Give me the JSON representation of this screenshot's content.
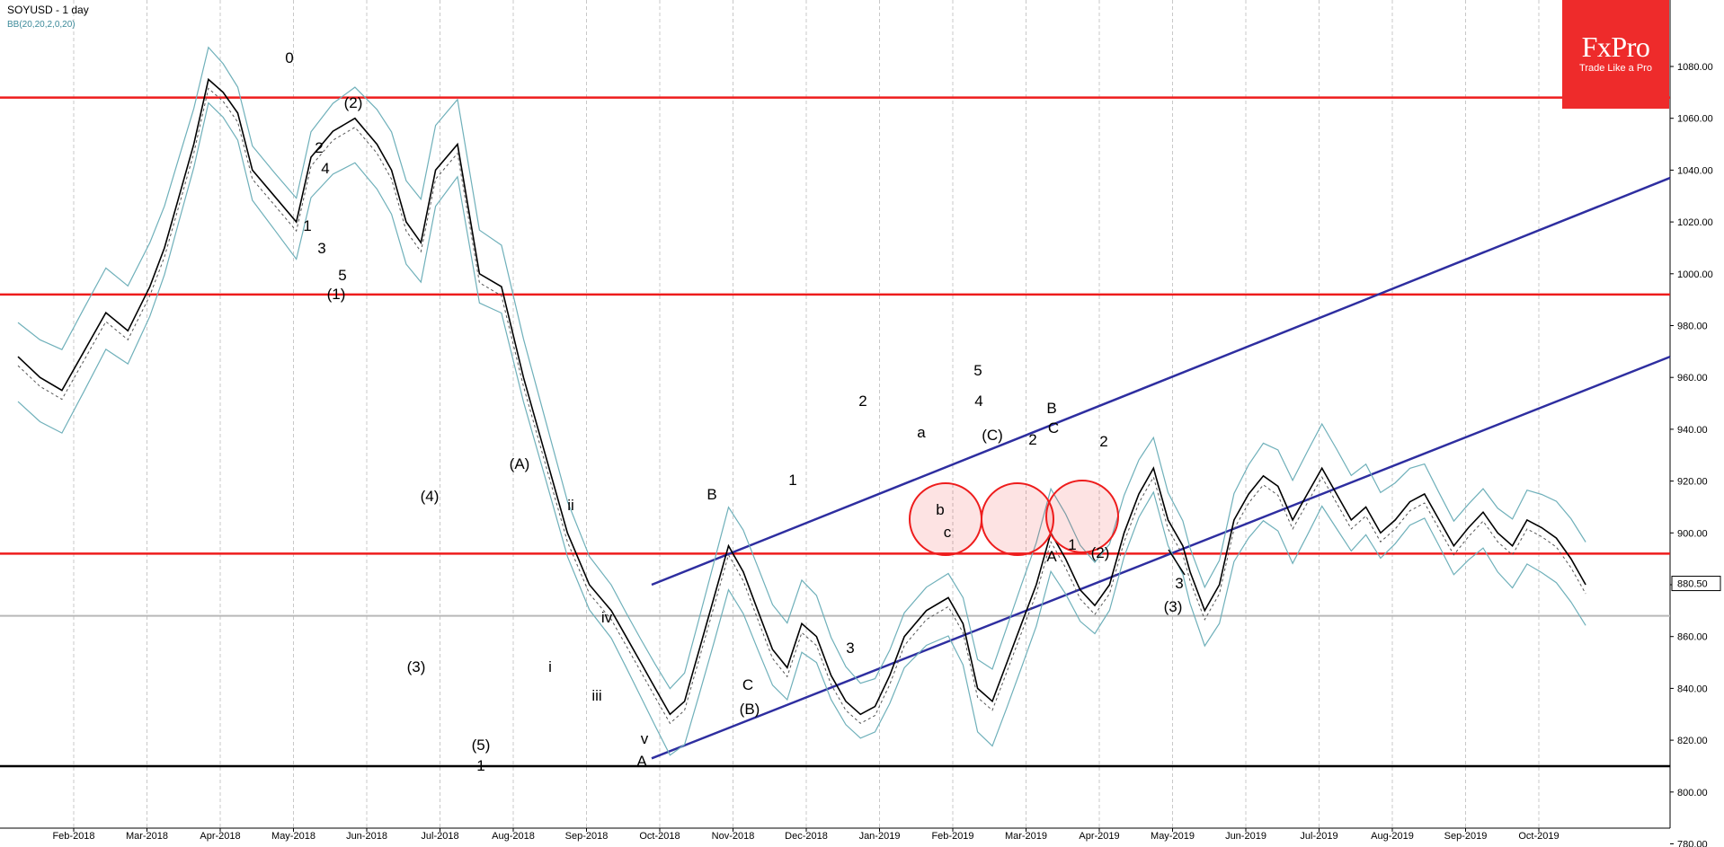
{
  "header": {
    "title": "SOYUSD - 1 day",
    "indicator": "BB(20,20,2,0,20)"
  },
  "brand": {
    "name": "FxPro",
    "tagline": "Trade Like a Pro",
    "color": "#ee2b2b"
  },
  "colors": {
    "price_line": "#000000",
    "bollinger": "#6fb0ba",
    "support_resistance": "#ee1c1c",
    "channel": "#2e2ea0",
    "floor_line": "#000000",
    "gray_line": "#b8b8b8",
    "grid": "#c8c8c8"
  },
  "chart_data": {
    "type": "line",
    "title": "SOYUSD - 1 day",
    "xlabel": "",
    "ylabel": "",
    "ylim": [
      770,
      1090
    ],
    "grid": true,
    "legend": "none",
    "x_tick_labels": [
      "Feb-2018",
      "Mar-2018",
      "Apr-2018",
      "May-2018",
      "Jun-2018",
      "Jul-2018",
      "Aug-2018",
      "Sep-2018",
      "Oct-2018",
      "Nov-2018",
      "Dec-2018",
      "Jan-2019",
      "Feb-2019",
      "Mar-2019",
      "Apr-2019",
      "May-2019",
      "Jun-2019",
      "Jul-2019",
      "Aug-2019",
      "Sep-2019",
      "Oct-2019"
    ],
    "y_ticks": [
      780,
      800,
      820,
      840,
      860,
      880,
      900,
      920,
      940,
      960,
      980,
      1000,
      1020,
      1040,
      1060,
      1080
    ],
    "current_price_label": "880.50",
    "current_price": 880.5,
    "series": [
      {
        "points": [
          [
            0,
            968
          ],
          [
            0.3,
            960
          ],
          [
            0.6,
            955
          ],
          [
            0.9,
            970
          ],
          [
            1.2,
            985
          ],
          [
            1.5,
            978
          ],
          [
            1.8,
            995
          ],
          [
            2.0,
            1010
          ],
          [
            2.2,
            1030
          ],
          [
            2.4,
            1050
          ],
          [
            2.6,
            1075
          ],
          [
            2.8,
            1070
          ],
          [
            3.0,
            1062
          ],
          [
            3.2,
            1040
          ],
          [
            3.5,
            1030
          ],
          [
            3.8,
            1020
          ],
          [
            4.0,
            1045
          ],
          [
            4.3,
            1055
          ],
          [
            4.6,
            1060
          ],
          [
            4.9,
            1050
          ],
          [
            5.1,
            1040
          ],
          [
            5.3,
            1020
          ],
          [
            5.5,
            1012
          ],
          [
            5.7,
            1040
          ],
          [
            6.0,
            1050
          ],
          [
            6.3,
            1000
          ],
          [
            6.6,
            995
          ],
          [
            6.9,
            960
          ],
          [
            7.2,
            930
          ],
          [
            7.5,
            900
          ],
          [
            7.8,
            880
          ],
          [
            8.1,
            870
          ],
          [
            8.3,
            860
          ],
          [
            8.5,
            850
          ],
          [
            8.7,
            840
          ],
          [
            8.9,
            830
          ],
          [
            9.1,
            835
          ],
          [
            9.3,
            855
          ],
          [
            9.5,
            875
          ],
          [
            9.7,
            895
          ],
          [
            9.9,
            885
          ],
          [
            10.1,
            870
          ],
          [
            10.3,
            855
          ],
          [
            10.5,
            848
          ],
          [
            10.7,
            865
          ],
          [
            10.9,
            860
          ],
          [
            11.1,
            845
          ],
          [
            11.3,
            835
          ],
          [
            11.5,
            830
          ],
          [
            11.7,
            833
          ],
          [
            11.9,
            845
          ],
          [
            12.1,
            860
          ],
          [
            12.4,
            870
          ],
          [
            12.7,
            875
          ],
          [
            12.9,
            865
          ],
          [
            13.1,
            840
          ],
          [
            13.3,
            835
          ],
          [
            13.5,
            850
          ],
          [
            13.7,
            865
          ],
          [
            13.9,
            880
          ],
          [
            14.1,
            900
          ],
          [
            14.3,
            890
          ],
          [
            14.5,
            878
          ],
          [
            14.7,
            872
          ],
          [
            14.9,
            880
          ],
          [
            15.1,
            900
          ],
          [
            15.3,
            915
          ],
          [
            15.5,
            925
          ],
          [
            15.7,
            905
          ],
          [
            15.9,
            895
          ],
          [
            16.0,
            885
          ],
          [
            16.2,
            870
          ],
          [
            16.4,
            880
          ],
          [
            16.6,
            905
          ],
          [
            16.8,
            915
          ],
          [
            17.0,
            922
          ],
          [
            17.2,
            918
          ],
          [
            17.4,
            905
          ],
          [
            17.6,
            915
          ],
          [
            17.8,
            925
          ],
          [
            18.0,
            915
          ],
          [
            18.2,
            905
          ],
          [
            18.4,
            910
          ],
          [
            18.6,
            900
          ],
          [
            18.8,
            905
          ],
          [
            19.0,
            912
          ],
          [
            19.2,
            915
          ],
          [
            19.4,
            905
          ],
          [
            19.6,
            895
          ],
          [
            19.8,
            902
          ],
          [
            20.0,
            908
          ],
          [
            20.2,
            900
          ],
          [
            20.4,
            895
          ],
          [
            20.6,
            905
          ],
          [
            20.8,
            902
          ],
          [
            21.0,
            898
          ],
          [
            21.2,
            890
          ],
          [
            21.4,
            880
          ]
        ]
      }
    ],
    "annotations": [
      "0",
      "(2)",
      "2",
      "4",
      "1",
      "3",
      "5",
      "(1)",
      "(4)",
      "(3)",
      "(5)",
      "1",
      "(A)",
      "ii",
      "i",
      "iv",
      "iii",
      "v",
      "A",
      "B",
      "C",
      "(B)",
      "1",
      "2",
      "3",
      "4",
      "5",
      "(C)",
      "2",
      "A",
      "B",
      "(2)",
      "C",
      "1",
      "2",
      "3",
      "(3)",
      "a",
      "b",
      "c"
    ]
  }
}
